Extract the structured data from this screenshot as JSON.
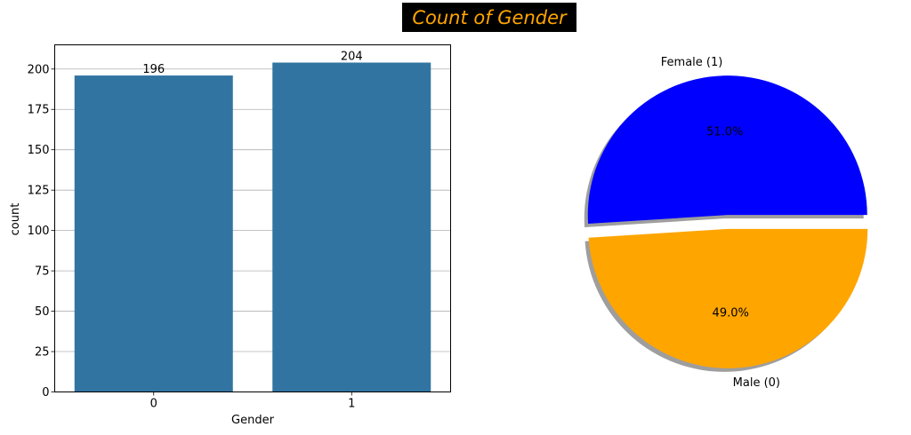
{
  "figure": {
    "suptitle": "Count of Gender",
    "suptitle_color": "#FFA500",
    "suptitle_bg": "#000000"
  },
  "chart_data": [
    {
      "type": "bar",
      "categories": [
        "0",
        "1"
      ],
      "values": [
        196,
        204
      ],
      "data_labels": [
        "196",
        "204"
      ],
      "xlabel": "Gender",
      "ylabel": "count",
      "ylim": [
        0,
        215
      ],
      "yticks": [
        0,
        25,
        50,
        75,
        100,
        125,
        150,
        175,
        200
      ],
      "grid": "horizontal",
      "bar_color": "#3274A1"
    },
    {
      "type": "pie",
      "labels": [
        "Female (1)",
        "Male (0)"
      ],
      "values": [
        51.0,
        49.0
      ],
      "pct_labels": [
        "51.0%",
        "49.0%"
      ],
      "colors": [
        "#0000FF",
        "#FFA500"
      ],
      "explode": true,
      "shadow": true
    }
  ]
}
